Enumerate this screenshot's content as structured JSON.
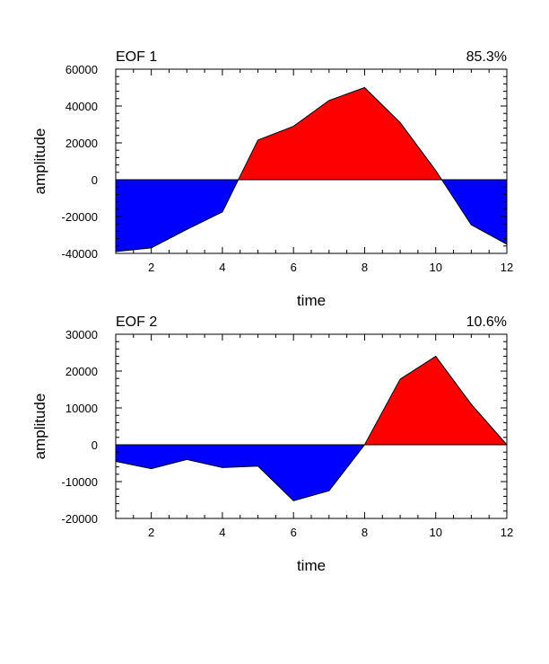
{
  "chart_data": [
    {
      "type": "area",
      "title": "EOF 1",
      "variance_label": "85.3%",
      "xlabel": "time",
      "ylabel": "amplitude",
      "x": [
        1,
        2,
        3,
        4,
        5,
        6,
        7,
        8,
        9,
        10,
        11,
        12
      ],
      "values": [
        -39000,
        -37000,
        -27000,
        -17500,
        21500,
        29000,
        43000,
        50000,
        31000,
        5000,
        -24500,
        -35000
      ],
      "xlim": [
        1,
        12
      ],
      "ylim": [
        -40000,
        60000
      ],
      "xticks": [
        2,
        4,
        6,
        8,
        10,
        12
      ],
      "yticks": [
        -40000,
        -20000,
        0,
        20000,
        40000,
        60000
      ],
      "positive_color": "#ff0000",
      "negative_color": "#0000ff"
    },
    {
      "type": "area",
      "title": "EOF 2",
      "variance_label": "10.6%",
      "xlabel": "time",
      "ylabel": "amplitude",
      "x": [
        1,
        2,
        3,
        4,
        5,
        6,
        7,
        8,
        9,
        10,
        11,
        12
      ],
      "values": [
        -4500,
        -6500,
        -4000,
        -6200,
        -5800,
        -15200,
        -12500,
        0,
        17800,
        24000,
        11000,
        0
      ],
      "xlim": [
        1,
        12
      ],
      "ylim": [
        -20000,
        30000
      ],
      "xticks": [
        2,
        4,
        6,
        8,
        10,
        12
      ],
      "yticks": [
        -20000,
        -10000,
        0,
        10000,
        20000,
        30000
      ],
      "positive_color": "#ff0000",
      "negative_color": "#0000ff"
    }
  ]
}
